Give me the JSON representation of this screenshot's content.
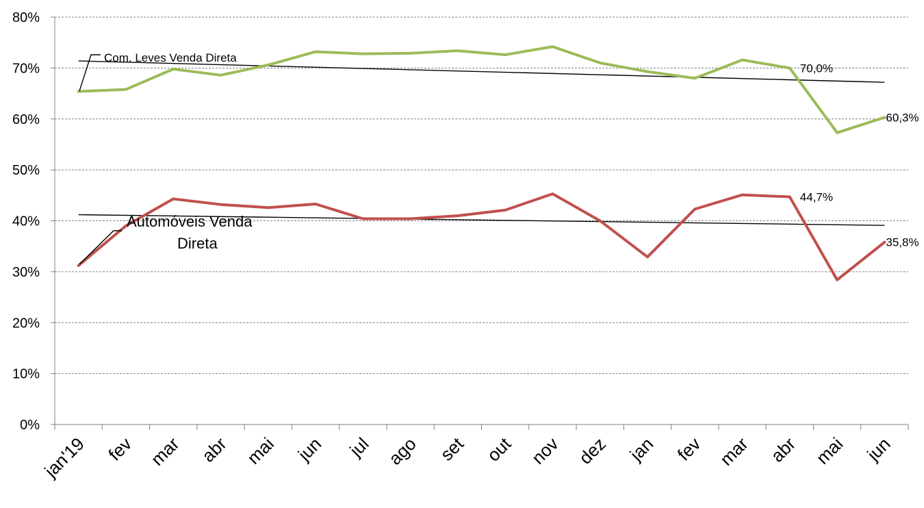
{
  "chart_data": {
    "type": "line",
    "categories": [
      "jan'19",
      "fev",
      "mar",
      "abr",
      "mai",
      "jun",
      "jul",
      "ago",
      "set",
      "out",
      "nov",
      "dez",
      "jan",
      "fev",
      "mar",
      "abr",
      "mai",
      "jun"
    ],
    "ylim": [
      0,
      80
    ],
    "ytick_labels": [
      "0%",
      "10%",
      "20%",
      "30%",
      "40%",
      "50%",
      "60%",
      "70%",
      "80%"
    ],
    "grid": "horizontal dashed",
    "series": [
      {
        "name": "Com. Leves Venda Direta",
        "color": "#9BBB59",
        "values": [
          65.4,
          65.8,
          69.8,
          68.6,
          70.6,
          73.2,
          72.8,
          72.9,
          73.4,
          72.6,
          74.2,
          71.0,
          69.3,
          68.0,
          71.6,
          70.0,
          57.3,
          60.3
        ],
        "trend": [
          71.4,
          67.2
        ],
        "data_labels": {
          "15": "70,0%",
          "17": "60,3%"
        }
      },
      {
        "name": "Automóveis Venda Direta",
        "color": "#C0504D",
        "values": [
          31.2,
          39.0,
          44.3,
          43.2,
          42.6,
          43.3,
          40.4,
          40.4,
          41.0,
          42.1,
          45.3,
          40.0,
          32.9,
          42.3,
          45.1,
          44.7,
          28.4,
          35.8
        ],
        "trend": [
          41.2,
          39.1
        ],
        "data_labels": {
          "15": "44,7%",
          "17": "35,8%"
        }
      }
    ],
    "series_label_lines": [
      "Com. Leves Venda Direta",
      "Automóveis Venda",
      "Direta"
    ]
  }
}
